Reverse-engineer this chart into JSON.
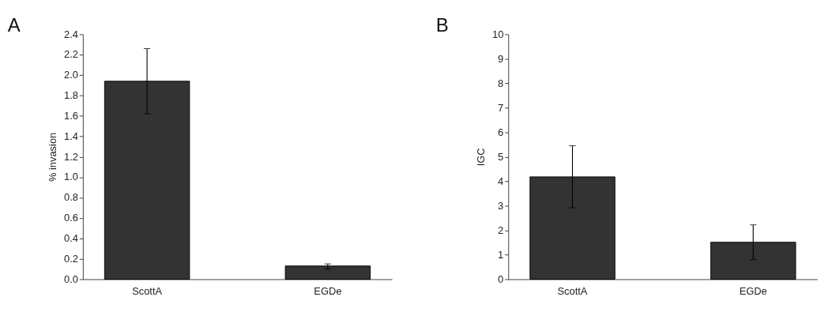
{
  "chart_data": [
    {
      "type": "bar",
      "title": "A",
      "ylabel": "% invasion",
      "categories": [
        "ScottA",
        "EGDe"
      ],
      "color": "#333333",
      "values": [
        1.94,
        0.13
      ],
      "errors": [
        [
          1.62,
          2.26
        ],
        [
          0.1,
          0.15
        ]
      ],
      "ylim": [
        0,
        2.4
      ],
      "yticks": [
        {
          "value": 0,
          "label": "0.0"
        },
        0.2,
        0.4,
        0.6,
        0.8,
        {
          "value": 1,
          "label": "1.0"
        },
        1.2,
        1.4,
        1.6,
        1.8,
        {
          "value": 2,
          "label": "2.0"
        },
        2.2,
        2.4
      ],
      "grid": false
    },
    {
      "type": "bar",
      "title": "B",
      "ylabel": "IGC",
      "categories": [
        "ScottA",
        "EGDe"
      ],
      "color": "#333333",
      "values": [
        4.18,
        1.51
      ],
      "errors": [
        [
          2.92,
          5.45
        ],
        [
          0.8,
          2.22
        ]
      ],
      "ylim": [
        0,
        10
      ],
      "yticks": [
        0,
        1,
        2,
        3,
        4,
        5,
        6,
        7,
        8,
        9,
        10
      ],
      "grid": false
    }
  ]
}
